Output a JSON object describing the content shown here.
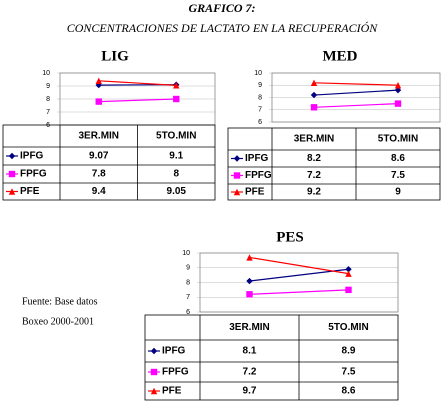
{
  "header": {
    "title": "GRAFICO 7:",
    "subtitle": "CONCENTRACIONES DE LACTATO EN LA RECUPERACIÓN"
  },
  "source": [
    "Fuente: Base datos",
    "Boxeo 2000-2001"
  ],
  "chart_data": [
    {
      "type": "line",
      "title": "LIG",
      "categories": [
        "3ER.MIN",
        "5TO.MIN"
      ],
      "series": [
        {
          "name": "IPFG",
          "color": "#000080",
          "values": [
            9.07,
            9.1
          ]
        },
        {
          "name": "FPFG",
          "color": "#ff00ff",
          "values": [
            7.8,
            8
          ]
        },
        {
          "name": "PFE",
          "color": "#ff0000",
          "values": [
            9.4,
            9.05
          ]
        }
      ],
      "ylim": [
        6,
        10
      ],
      "yticks": [
        6,
        7,
        8,
        9,
        10
      ]
    },
    {
      "type": "line",
      "title": "MED",
      "categories": [
        "3ER.MIN",
        "5TO.MIN"
      ],
      "series": [
        {
          "name": "IPFG",
          "color": "#000080",
          "values": [
            8.2,
            8.6
          ]
        },
        {
          "name": "FPFG",
          "color": "#ff00ff",
          "values": [
            7.2,
            7.5
          ]
        },
        {
          "name": "PFE",
          "color": "#ff0000",
          "values": [
            9.2,
            9
          ]
        }
      ],
      "ylim": [
        6,
        10
      ],
      "yticks": [
        6,
        7,
        8,
        9,
        10
      ]
    },
    {
      "type": "line",
      "title": "PES",
      "categories": [
        "3ER.MIN",
        "5TO.MIN"
      ],
      "series": [
        {
          "name": "IPFG",
          "color": "#000080",
          "values": [
            8.1,
            8.9
          ]
        },
        {
          "name": "FPFG",
          "color": "#ff00ff",
          "values": [
            7.2,
            7.5
          ]
        },
        {
          "name": "PFE",
          "color": "#ff0000",
          "values": [
            9.7,
            8.6
          ]
        }
      ],
      "ylim": [
        6,
        10
      ],
      "yticks": [
        6,
        7,
        8,
        9,
        10
      ]
    }
  ]
}
